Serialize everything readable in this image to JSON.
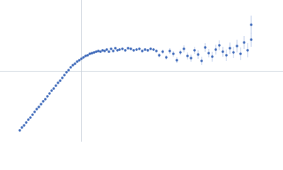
{
  "chart_data": {
    "type": "scatter",
    "color": "#3a66b8",
    "error_color": "#a9bde3",
    "axis_color": "#c8d0da",
    "xlim": [
      -115,
      285
    ],
    "ylim": [
      -100,
      100
    ],
    "series": [
      {
        "x": [
          -87,
          -84,
          -81,
          -78,
          -75,
          -72,
          -69,
          -66,
          -63,
          -60,
          -57,
          -54,
          -51,
          -48,
          -45,
          -42,
          -39,
          -36,
          -33,
          -30,
          -27,
          -24,
          -21,
          -18,
          -15,
          -12,
          -9,
          -6,
          -3,
          0,
          3,
          6,
          9,
          12,
          15,
          18,
          21,
          24,
          27,
          30,
          33,
          36,
          39,
          42,
          45,
          48,
          51,
          54,
          58,
          62,
          66,
          70,
          74,
          78,
          82,
          86,
          90,
          94,
          98,
          102,
          106,
          110,
          115,
          120,
          125,
          130,
          135,
          140,
          145,
          150,
          155,
          160,
          165,
          170,
          175,
          180,
          185,
          190,
          195,
          200,
          205,
          210,
          215,
          220,
          225,
          230,
          235,
          240,
          240
        ],
        "values": [
          -84,
          -80,
          -77,
          -73,
          -69,
          -66,
          -62,
          -58,
          -54,
          -51,
          -47,
          -43,
          -40,
          -36,
          -32,
          -28,
          -25,
          -21,
          -17,
          -14,
          -10,
          -6,
          -2,
          1,
          5,
          8,
          10,
          13,
          15,
          17,
          19,
          21,
          22,
          24,
          25,
          26,
          27,
          28,
          27,
          29,
          28,
          30,
          27,
          31,
          28,
          32,
          29,
          30,
          31,
          29,
          32,
          31,
          29,
          30,
          31,
          28,
          30,
          29,
          31,
          30,
          28,
          22,
          27,
          19,
          28,
          24,
          15,
          26,
          31,
          21,
          18,
          29,
          23,
          14,
          33,
          25,
          20,
          30,
          36,
          27,
          22,
          32,
          26,
          35,
          24,
          40,
          29,
          44,
          65
        ],
        "errors": [
          1,
          1,
          1,
          1,
          1,
          1,
          1,
          1,
          1,
          1,
          1,
          1,
          1,
          1,
          1,
          1,
          1,
          1,
          1,
          1,
          1,
          1,
          1,
          1,
          1,
          1,
          1,
          1,
          1,
          1,
          1,
          1,
          1,
          1,
          1,
          1,
          1,
          1,
          1,
          1,
          1,
          1,
          1,
          1,
          1,
          1,
          1,
          2,
          2,
          2,
          2,
          2,
          2,
          2,
          2,
          2,
          2,
          2,
          2,
          2,
          2,
          3,
          3,
          3,
          4,
          4,
          4,
          4,
          5,
          5,
          5,
          5,
          6,
          6,
          6,
          6,
          7,
          7,
          7,
          7,
          8,
          8,
          8,
          9,
          9,
          9,
          10,
          10,
          13
        ]
      }
    ]
  }
}
